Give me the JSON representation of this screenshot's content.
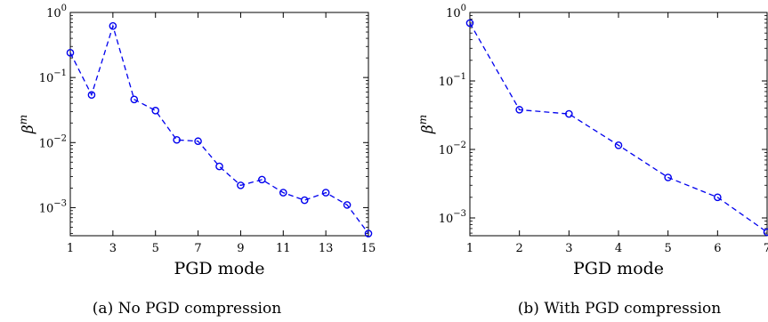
{
  "chart_data": [
    {
      "type": "line",
      "caption": "(a) No PGD compression",
      "xlabel": "PGD mode",
      "ylabel_base": "β",
      "ylabel_sup": "m",
      "yscale": "log",
      "xlim": [
        1,
        15
      ],
      "ylim": [
        0.00037,
        1
      ],
      "xticks": [
        1,
        3,
        5,
        7,
        9,
        11,
        13,
        15
      ],
      "yticks": [
        {
          "value": 1,
          "base": "10",
          "exp": "0"
        },
        {
          "value": 0.1,
          "base": "10",
          "exp": "−1"
        },
        {
          "value": 0.01,
          "base": "10",
          "exp": "−2"
        },
        {
          "value": 0.001,
          "base": "10",
          "exp": "−3"
        }
      ],
      "color": "#0000ee",
      "line_style": "dashed",
      "marker": "circle",
      "series": [
        {
          "x": [
            1,
            2,
            3,
            4,
            5,
            6,
            7,
            8,
            9,
            10,
            11,
            12,
            13,
            14,
            15
          ],
          "values": [
            0.24,
            0.054,
            0.62,
            0.046,
            0.031,
            0.011,
            0.0105,
            0.0043,
            0.0022,
            0.0027,
            0.0017,
            0.0013,
            0.0017,
            0.0011,
            0.0004
          ]
        }
      ]
    },
    {
      "type": "line",
      "caption": "(b) With PGD compression",
      "xlabel": "PGD mode",
      "ylabel_base": "β",
      "ylabel_sup": "m",
      "yscale": "log",
      "xlim": [
        1,
        7
      ],
      "ylim": [
        0.00055,
        1
      ],
      "xticks": [
        1,
        2,
        3,
        4,
        5,
        6,
        7
      ],
      "yticks": [
        {
          "value": 1,
          "base": "10",
          "exp": "0"
        },
        {
          "value": 0.1,
          "base": "10",
          "exp": "−1"
        },
        {
          "value": 0.01,
          "base": "10",
          "exp": "−2"
        },
        {
          "value": 0.001,
          "base": "10",
          "exp": "−3"
        }
      ],
      "color": "#0000ee",
      "line_style": "dashed",
      "marker": "circle",
      "series": [
        {
          "x": [
            1,
            2,
            3,
            4,
            5,
            6,
            7
          ],
          "values": [
            0.7,
            0.038,
            0.033,
            0.0115,
            0.0039,
            0.002,
            0.00062
          ]
        }
      ]
    }
  ]
}
